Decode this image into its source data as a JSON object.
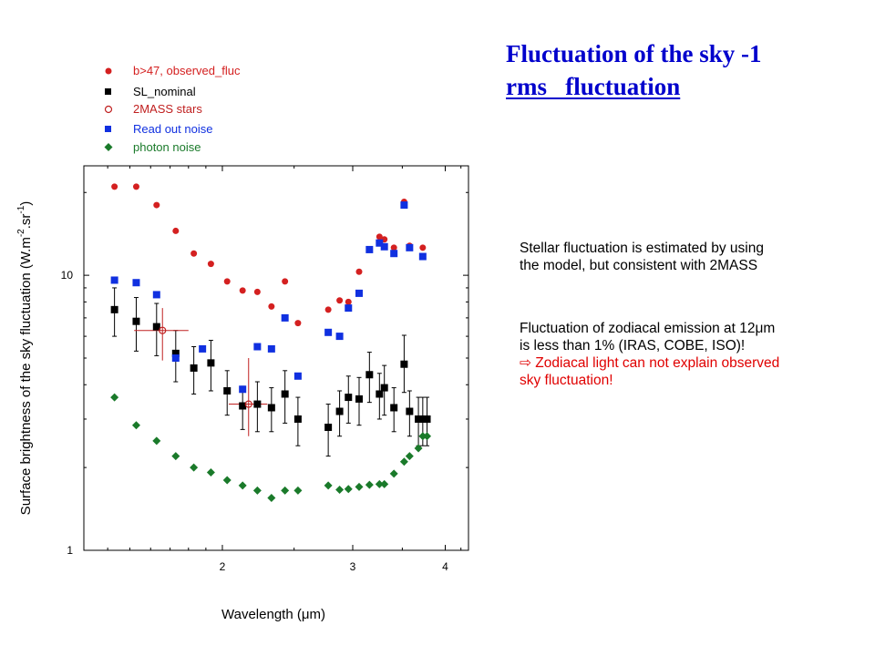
{
  "header": {
    "title_line1": "Fluctuation of the sky -1",
    "title_line2": "rms   fluctuation"
  },
  "notes": {
    "stellar_line1": "Stellar fluctuation is estimated by using",
    "stellar_line2": "the model, but consistent with 2MASS",
    "zodi_line1": "Fluctuation of zodiacal emission at 12μm",
    "zodi_line2": "is less than 1% (IRAS, COBE, ISO)!",
    "zodi_line3": "⇨ Zodiacal light can not explain observed",
    "zodi_line4": "sky fluctuation!"
  },
  "colors": {
    "observed": "#d42020",
    "sl_nominal": "#000000",
    "twomass": "#c02020",
    "readout": "#1030e0",
    "photon": "#1a7a2a",
    "note_red": "#e00000",
    "title_blue": "#0000cc"
  },
  "chart_data": {
    "type": "scatter",
    "xscale": "log",
    "yscale": "log",
    "xlim": [
      1.3,
      4.3
    ],
    "ylim": [
      1,
      25
    ],
    "xticks": [
      2,
      3,
      4
    ],
    "xtick_labels": [
      "2",
      "3",
      "4"
    ],
    "yticks": [
      1,
      10
    ],
    "ytick_labels": [
      "1",
      "10"
    ],
    "xlabel": "Wavelength  (μm)",
    "ylabel_main": "Surface brightness of the sky fluctuation (W.m",
    "ylabel_sup1": "-2",
    "ylabel_mid": ".sr",
    "ylabel_sup2": "-1",
    "ylabel_end": ")",
    "legend_position": "top-left",
    "series": [
      {
        "name": "b>47, observed_fluc",
        "marker": "circle",
        "color": "#d42020",
        "x": [
          1.43,
          1.53,
          1.63,
          1.73,
          1.83,
          1.93,
          2.03,
          2.13,
          2.23,
          2.33,
          2.43,
          2.53,
          2.78,
          2.88,
          2.96,
          3.06,
          3.16,
          3.26,
          3.31,
          3.41,
          3.52,
          3.58,
          3.73
        ],
        "y": [
          21,
          21,
          18,
          14.5,
          12,
          11,
          9.5,
          8.8,
          8.7,
          7.7,
          9.5,
          6.7,
          7.5,
          8.1,
          8.0,
          10.3,
          12.4,
          13.8,
          13.5,
          12.6,
          18.5,
          12.8,
          12.6
        ]
      },
      {
        "name": "SL_nominal",
        "marker": "square",
        "color": "#000000",
        "x": [
          1.43,
          1.53,
          1.63,
          1.73,
          1.83,
          1.93,
          2.03,
          2.13,
          2.23,
          2.33,
          2.43,
          2.53,
          2.78,
          2.88,
          2.96,
          3.06,
          3.16,
          3.26,
          3.31,
          3.41,
          3.52,
          3.58,
          3.68,
          3.73,
          3.78
        ],
        "y": [
          7.5,
          6.8,
          6.5,
          5.2,
          4.6,
          4.8,
          3.8,
          3.35,
          3.4,
          3.3,
          3.7,
          3.0,
          2.8,
          3.2,
          3.6,
          3.55,
          4.35,
          3.7,
          3.9,
          3.3,
          4.75,
          3.2,
          3.0,
          3.0,
          3.0
        ],
        "yerr_lower": [
          1.5,
          1.5,
          1.4,
          1.1,
          0.9,
          1.0,
          0.7,
          0.6,
          0.7,
          0.6,
          0.8,
          0.6,
          0.6,
          0.6,
          0.7,
          0.7,
          0.9,
          0.7,
          0.8,
          0.6,
          1.0,
          0.6,
          0.6,
          0.6,
          0.6
        ],
        "yerr_upper": [
          1.5,
          1.5,
          1.4,
          1.1,
          0.9,
          1.0,
          0.7,
          0.6,
          0.7,
          0.6,
          0.8,
          0.6,
          0.6,
          0.6,
          0.7,
          0.7,
          0.9,
          0.7,
          0.8,
          0.6,
          1.3,
          0.6,
          0.6,
          0.6,
          0.6
        ]
      },
      {
        "name": "2MASS stars",
        "marker": "open-circle",
        "color": "#c02020",
        "x": [
          1.66,
          2.17
        ],
        "y": [
          6.3,
          3.4
        ],
        "xerr": [
          [
            0.14,
            0.14
          ],
          [
            0.13,
            0.13
          ]
        ],
        "yerr": [
          [
            1.4,
            1.3
          ],
          [
            0.8,
            1.6
          ]
        ]
      },
      {
        "name": "Read out noise",
        "marker": "square",
        "color": "#1030e0",
        "x": [
          1.43,
          1.53,
          1.63,
          1.73,
          1.88,
          2.13,
          2.23,
          2.33,
          2.43,
          2.53,
          2.78,
          2.88,
          2.96,
          3.06,
          3.16,
          3.26,
          3.31,
          3.41,
          3.52,
          3.58,
          3.73
        ],
        "y": [
          9.6,
          9.4,
          8.5,
          5.0,
          5.4,
          3.85,
          5.5,
          5.4,
          7.0,
          4.3,
          6.2,
          6.0,
          7.6,
          8.6,
          12.4,
          13.1,
          12.7,
          12.0,
          18.0,
          12.6,
          11.7
        ]
      },
      {
        "name": "photon noise",
        "marker": "diamond",
        "color": "#1a7a2a",
        "x": [
          1.43,
          1.53,
          1.63,
          1.73,
          1.83,
          1.93,
          2.03,
          2.13,
          2.23,
          2.33,
          2.43,
          2.53,
          2.78,
          2.88,
          2.96,
          3.06,
          3.16,
          3.26,
          3.31,
          3.41,
          3.52,
          3.58,
          3.68,
          3.73,
          3.78
        ],
        "y": [
          3.6,
          2.85,
          2.5,
          2.2,
          2.0,
          1.92,
          1.8,
          1.72,
          1.65,
          1.55,
          1.65,
          1.65,
          1.72,
          1.66,
          1.67,
          1.7,
          1.73,
          1.74,
          1.74,
          1.9,
          2.1,
          2.2,
          2.35,
          2.6,
          2.6
        ]
      }
    ]
  }
}
